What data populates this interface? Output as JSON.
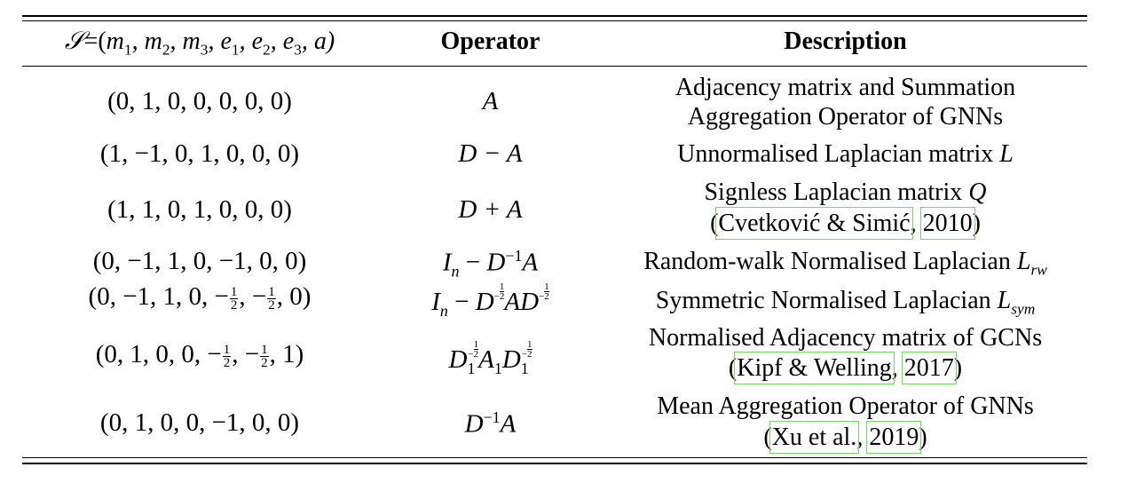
{
  "table": {
    "headers": {
      "signature": "𝒮=(m₁, m₂, m₃, e₁, e₂, e₃, a)",
      "operator": "Operator",
      "description": "Description"
    },
    "rows": [
      {
        "signature": "(0, 1, 0, 0, 0, 0, 0)",
        "operator": "A",
        "description_lines": [
          "Adjacency matrix and Summation",
          "Aggregation Operator of GNNs"
        ]
      },
      {
        "signature": "(1, −1, 0, 1, 0, 0, 0)",
        "operator": "D − A",
        "description_lines": [
          "Unnormalised Laplacian matrix L"
        ]
      },
      {
        "signature": "(1, 1, 0, 1, 0, 0, 0)",
        "operator": "D + A",
        "description_lines": [
          "Signless Laplacian matrix Q"
        ],
        "citation": {
          "authors": "Cvetković & Simić",
          "year": "2010"
        }
      },
      {
        "signature": "(0, −1, 1, 0, −1, 0, 0)",
        "operator": "I_n − D^{-1}A",
        "description_lines": [
          "Random-walk Normalised Laplacian L_rw"
        ]
      },
      {
        "signature": "(0, −1, 1, 0, −1/2, −1/2, 0)",
        "operator": "I_n − D^{-1/2} A D^{-1/2}",
        "description_lines": [
          "Symmetric Normalised Laplacian L_sym"
        ]
      },
      {
        "signature": "(0, 1, 0, 0, −1/2, −1/2, 1)",
        "operator": "D_1^{-1/2} A_1 D_1^{-1/2}",
        "description_lines": [
          "Normalised Adjacency matrix of GCNs"
        ],
        "citation": {
          "authors": "Kipf & Welling",
          "year": "2017"
        }
      },
      {
        "signature": "(0, 1, 0, 0, −1, 0, 0)",
        "operator": "D^{-1}A",
        "description_lines": [
          "Mean Aggregation Operator of GNNs"
        ],
        "citation": {
          "authors": "Xu et al.",
          "year": "2019"
        }
      }
    ]
  },
  "text": {
    "hdr_sig_parts": [
      "𝒮",
      "=(",
      "m",
      "1",
      ", m",
      "2",
      ", m",
      "3",
      ", e",
      "1",
      ", e",
      "2",
      ", e",
      "3",
      ", a)"
    ],
    "r1_desc_line1": "Adjacency matrix and Summation",
    "r1_desc_line2": "Aggregation Operator of GNNs",
    "r2_desc_text": "Unnormalised Laplacian matrix ",
    "r2_desc_sym": "L",
    "r3_desc_text": "Signless Laplacian matrix ",
    "r3_desc_sym": "Q",
    "r4_desc_text": "Random-walk Normalised Laplacian ",
    "r4_desc_sym": "L",
    "r4_desc_sub": "rw",
    "r5_desc_text": "Symmetric Normalised Laplacian ",
    "r5_desc_sym": "L",
    "r5_desc_sub": "sym",
    "r6_desc_line1": "Normalised Adjacency matrix of GCNs",
    "r7_desc_line1": "Mean Aggregation Operator of GNNs",
    "paren_open": "(",
    "paren_close": ")",
    "comma": ","
  }
}
